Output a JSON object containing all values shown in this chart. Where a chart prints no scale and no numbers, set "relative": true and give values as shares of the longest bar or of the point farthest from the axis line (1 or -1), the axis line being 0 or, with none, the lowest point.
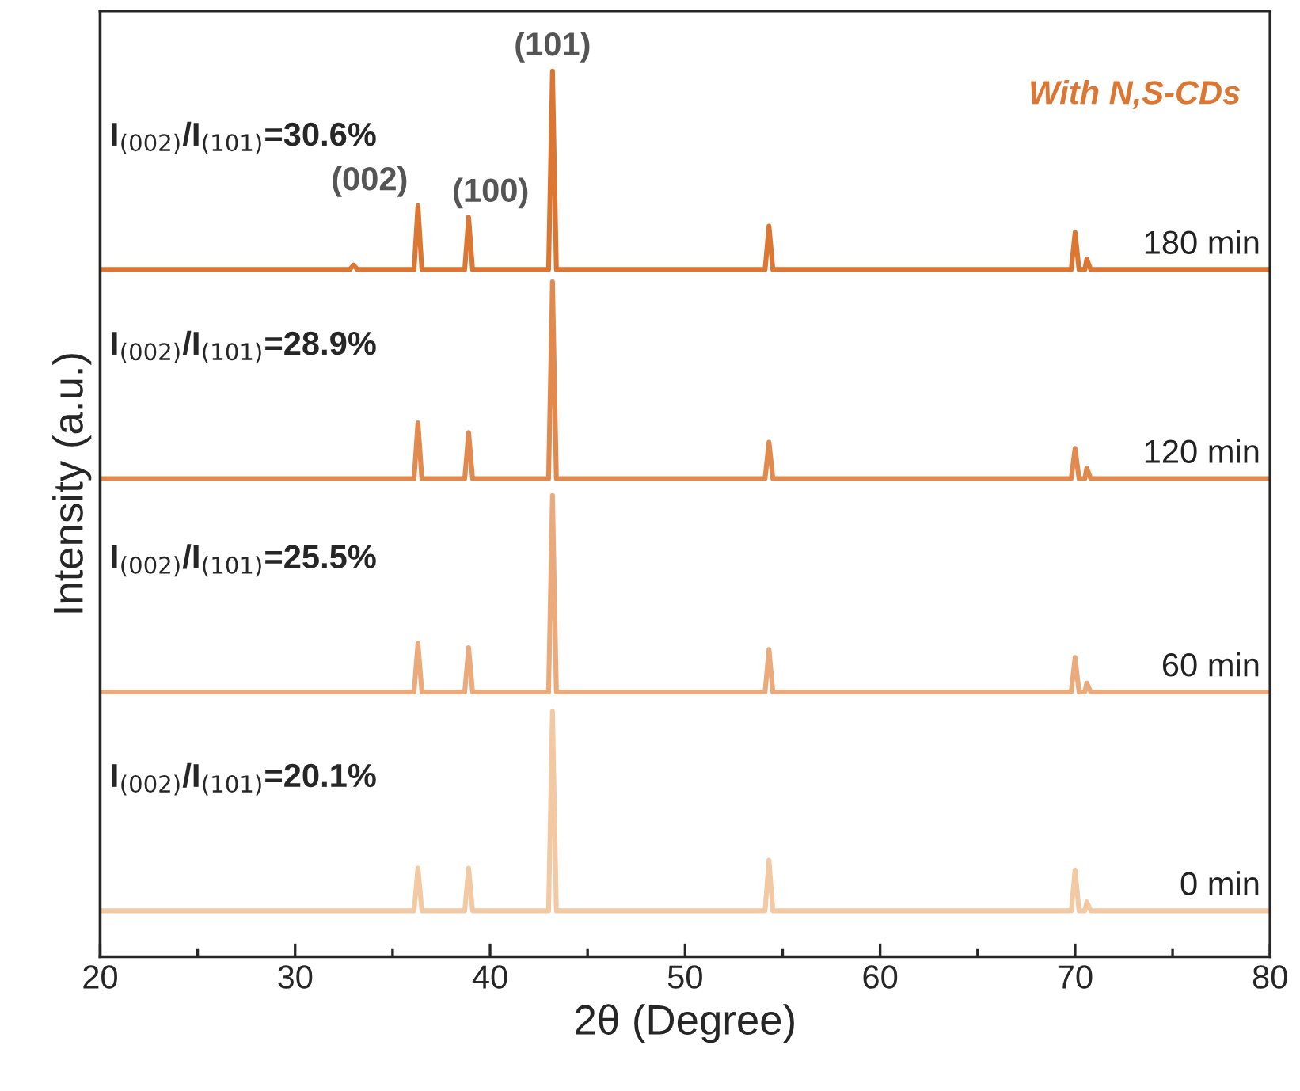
{
  "chart_data": {
    "type": "line",
    "relative": true,
    "xlabel": "2θ (Degree)",
    "ylabel": "Intensity (a.u.)",
    "x": [
      20,
      32.8,
      33.0,
      33.2,
      36.1,
      36.3,
      36.5,
      38.7,
      38.9,
      39.1,
      43.0,
      43.2,
      43.4,
      54.1,
      54.3,
      54.5,
      69.8,
      70.0,
      70.2,
      70.5,
      70.6,
      70.8,
      80
    ],
    "xlim": [
      20,
      80
    ],
    "xticks": [
      20,
      30,
      40,
      50,
      60,
      70,
      80
    ],
    "grid": false,
    "marker": "none",
    "line_style": "solid",
    "series": [
      {
        "name": "180 min",
        "color": "#dc7633",
        "values": [
          0.776,
          0.776,
          0.781,
          0.776,
          0.776,
          0.848,
          0.776,
          0.776,
          0.835,
          0.776,
          0.776,
          1.0,
          0.776,
          0.776,
          0.825,
          0.776,
          0.776,
          0.818,
          0.776,
          0.776,
          0.788,
          0.776,
          0.776
        ]
      },
      {
        "name": "120 min",
        "color": "#e28a4e",
        "values": [
          0.54,
          0.54,
          0.54,
          0.54,
          0.54,
          0.603,
          0.54,
          0.54,
          0.592,
          0.54,
          0.54,
          0.762,
          0.54,
          0.54,
          0.581,
          0.54,
          0.54,
          0.574,
          0.54,
          0.54,
          0.552,
          0.54,
          0.54
        ]
      },
      {
        "name": "60 min",
        "color": "#eaaa7c",
        "values": [
          0.299,
          0.299,
          0.299,
          0.299,
          0.299,
          0.354,
          0.299,
          0.299,
          0.349,
          0.299,
          0.299,
          0.521,
          0.299,
          0.299,
          0.347,
          0.299,
          0.299,
          0.338,
          0.299,
          0.299,
          0.309,
          0.299,
          0.299
        ]
      },
      {
        "name": "0 min",
        "color": "#f2c9a3",
        "values": [
          0.052,
          0.052,
          0.052,
          0.052,
          0.052,
          0.1,
          0.052,
          0.052,
          0.1,
          0.052,
          0.052,
          0.277,
          0.052,
          0.052,
          0.109,
          0.052,
          0.052,
          0.098,
          0.052,
          0.052,
          0.062,
          0.052,
          0.052
        ]
      }
    ],
    "annotations": [
      "With N,S-CDs",
      "I$_{(002)}$/I$_{(101)}$=30.6%",
      "I$_{(002)}$/I$_{(101)}$=28.9%",
      "I$_{(002)}$/I$_{(101)}$=25.5%",
      "I$_{(002)}$/I$_{(101)}$=20.1%",
      {
        "text": "(002)",
        "x": 36.3,
        "y": 0.848
      },
      {
        "text": "(100)",
        "x": 38.9,
        "y": 0.835
      },
      {
        "text": "(101)",
        "x": 43.2,
        "y": 1.0
      }
    ]
  }
}
